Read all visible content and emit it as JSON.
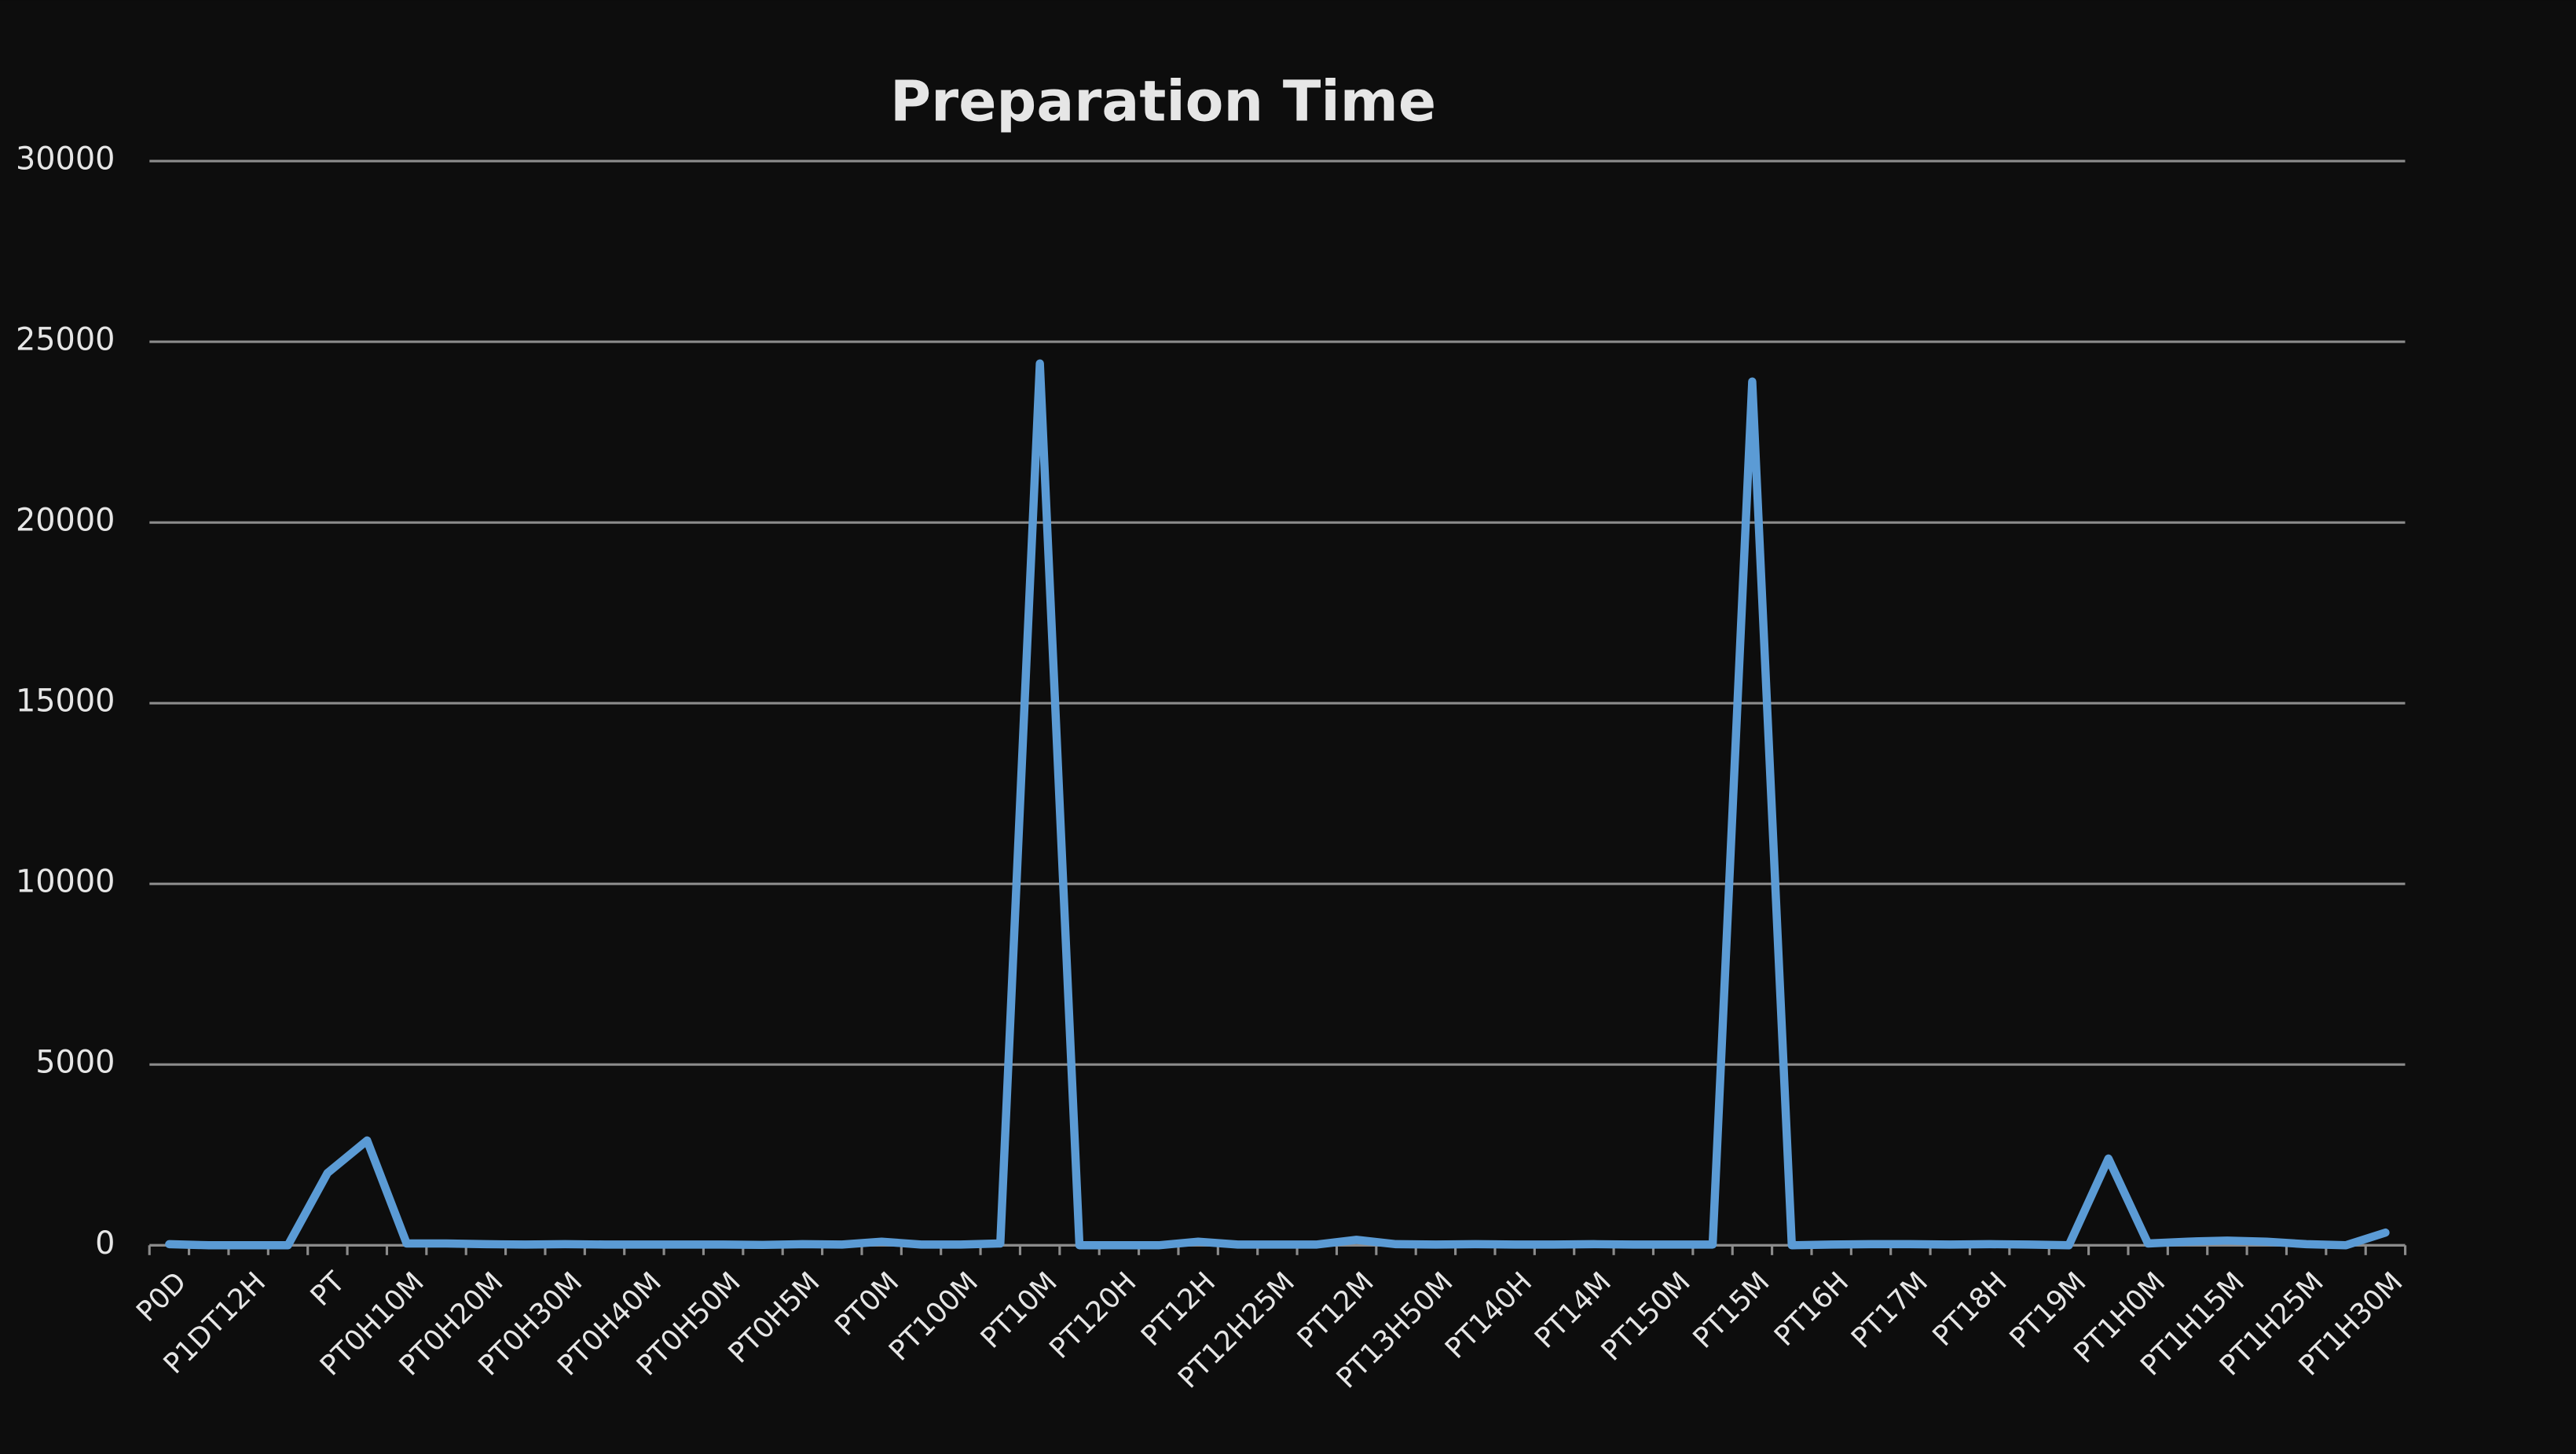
{
  "chart_data": {
    "type": "line",
    "title": "Preparation Time",
    "categories": [
      "P0D",
      null,
      "P1DT12H",
      null,
      "PT",
      null,
      "PT0H10M",
      null,
      "PT0H20M",
      null,
      "PT0H30M",
      null,
      "PT0H40M",
      null,
      "PT0H50M",
      null,
      "PT0H5M",
      null,
      "PT0M",
      null,
      "PT100M",
      null,
      "PT10M",
      null,
      "PT120H",
      null,
      "PT12H",
      null,
      "PT12H25M",
      null,
      "PT12M",
      null,
      "PT13H50M",
      null,
      "PT140H",
      null,
      "PT14M",
      null,
      "PT150M",
      null,
      "PT15M",
      null,
      "PT16H",
      null,
      "PT17M",
      null,
      "PT18H",
      null,
      "PT19M",
      null,
      "PT1H0M",
      null,
      "PT1H15M",
      null,
      "PT1H25M",
      null,
      "PT1H30M"
    ],
    "series": [
      {
        "color": "#5b9bd5",
        "values": [
          30,
          0,
          0,
          0,
          2000,
          2900,
          50,
          50,
          30,
          20,
          30,
          20,
          20,
          20,
          20,
          10,
          30,
          20,
          100,
          20,
          20,
          50,
          24400,
          0,
          0,
          0,
          100,
          20,
          20,
          20,
          150,
          30,
          20,
          30,
          20,
          20,
          30,
          20,
          20,
          20,
          23900,
          0,
          20,
          30,
          30,
          20,
          30,
          20,
          0,
          2400,
          50,
          100,
          130,
          100,
          30,
          0,
          350
        ]
      }
    ],
    "ylim": [
      0,
      30000
    ],
    "yticks": [
      0,
      5000,
      10000,
      15000,
      20000,
      25000,
      30000
    ],
    "grid": true
  }
}
